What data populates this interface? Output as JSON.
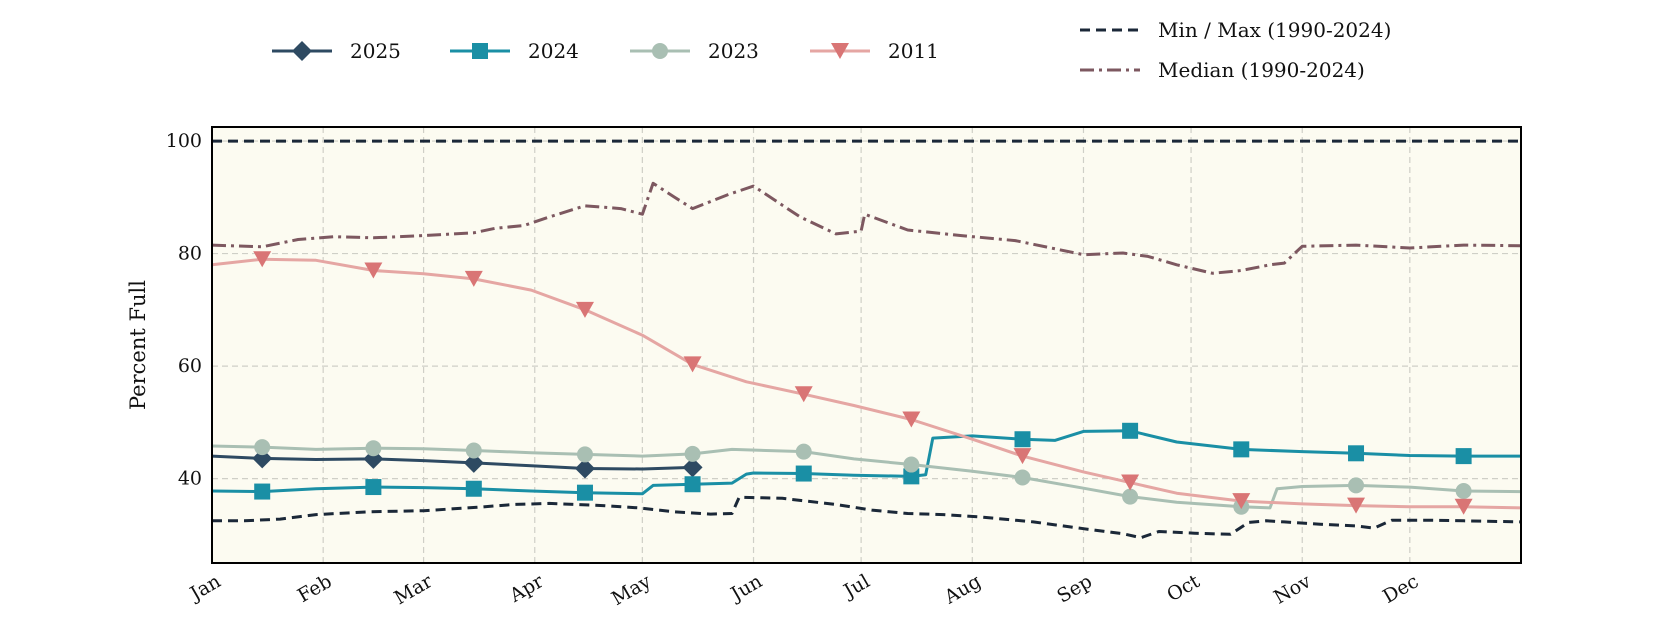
{
  "chart_data": {
    "type": "line",
    "ylabel": "Percent Full",
    "xlabel": "",
    "title": "",
    "x_unit": "day_of_year",
    "xlim": [
      1,
      366
    ],
    "ylim": [
      25,
      102.5
    ],
    "y_ticks": [
      40,
      60,
      80,
      100
    ],
    "x_ticks": [
      {
        "label": "Jan",
        "day": 1
      },
      {
        "label": "Feb",
        "day": 32
      },
      {
        "label": "Mar",
        "day": 60
      },
      {
        "label": "Apr",
        "day": 91
      },
      {
        "label": "May",
        "day": 121
      },
      {
        "label": "Jun",
        "day": 152
      },
      {
        "label": "Jul",
        "day": 182
      },
      {
        "label": "Aug",
        "day": 213
      },
      {
        "label": "Sep",
        "day": 244
      },
      {
        "label": "Oct",
        "day": 274
      },
      {
        "label": "Nov",
        "day": 305
      },
      {
        "label": "Dec",
        "day": 335
      }
    ],
    "grid": true,
    "plot_background": "#fcfbf1",
    "legend_placement": "top",
    "series": [
      {
        "name": "2025",
        "color": "#2e4a62",
        "marker": "diamond",
        "style": "solid",
        "x": [
          1,
          15,
          30,
          46,
          60,
          74,
          90,
          105,
          121,
          135,
          136
        ],
        "y": [
          44.0,
          43.6,
          43.4,
          43.5,
          43.2,
          42.8,
          42.3,
          41.8,
          41.7,
          42.0,
          42.0
        ],
        "marker_x": [
          15,
          46,
          74,
          105,
          135
        ]
      },
      {
        "name": "2024",
        "color": "#1a8fa5",
        "marker": "square",
        "style": "solid",
        "x": [
          1,
          15,
          30,
          46,
          60,
          74,
          90,
          105,
          121,
          124,
          135,
          146,
          150,
          152,
          166,
          180,
          196,
          200,
          202,
          213,
          227,
          236,
          244,
          257,
          270,
          288,
          305,
          320,
          335,
          350,
          366
        ],
        "y": [
          37.8,
          37.7,
          38.2,
          38.5,
          38.4,
          38.2,
          37.8,
          37.5,
          37.3,
          38.8,
          39.0,
          39.2,
          40.8,
          41.0,
          40.9,
          40.6,
          40.4,
          40.7,
          47.2,
          47.6,
          47.0,
          46.8,
          48.4,
          48.5,
          46.5,
          45.2,
          44.8,
          44.5,
          44.1,
          44.0,
          44.0
        ],
        "marker_x": [
          15,
          46,
          74,
          105,
          135,
          166,
          196,
          227,
          257,
          288,
          320,
          350
        ]
      },
      {
        "name": "2023",
        "color": "#a9bfb3",
        "marker": "circle",
        "style": "solid",
        "x": [
          1,
          15,
          30,
          46,
          60,
          74,
          90,
          105,
          121,
          135,
          146,
          166,
          180,
          196,
          213,
          227,
          244,
          257,
          270,
          288,
          296,
          298,
          305,
          320,
          335,
          350,
          366
        ],
        "y": [
          45.8,
          45.6,
          45.2,
          45.4,
          45.3,
          45.0,
          44.6,
          44.3,
          44.0,
          44.4,
          45.2,
          44.8,
          43.5,
          42.5,
          41.3,
          40.2,
          38.3,
          36.8,
          35.8,
          35.0,
          34.8,
          38.2,
          38.6,
          38.8,
          38.5,
          37.8,
          37.7
        ],
        "marker_x": [
          15,
          46,
          74,
          105,
          135,
          166,
          196,
          227,
          257,
          288,
          320,
          350
        ]
      },
      {
        "name": "2011",
        "color": "#d97575",
        "line_color": "#e5a6a3",
        "marker": "triangle-down",
        "style": "solid",
        "x": [
          1,
          15,
          30,
          46,
          60,
          74,
          90,
          105,
          121,
          135,
          150,
          166,
          180,
          196,
          213,
          227,
          244,
          257,
          270,
          288,
          305,
          320,
          335,
          350,
          366
        ],
        "y": [
          78.0,
          79.0,
          78.8,
          77.0,
          76.4,
          75.5,
          73.5,
          70.0,
          65.5,
          60.3,
          57.2,
          55.0,
          53.0,
          50.5,
          47.0,
          44.0,
          41.2,
          39.3,
          37.4,
          36.0,
          35.5,
          35.2,
          35.0,
          35.0,
          34.8
        ],
        "marker_x": [
          15,
          46,
          74,
          105,
          135,
          166,
          196,
          227,
          257,
          288,
          320,
          350
        ]
      },
      {
        "name": "Min / Max (1990-2024)",
        "color": "#1b2838",
        "style": "dashed",
        "x": [
          1,
          366
        ],
        "y": [
          100.0,
          100.0
        ]
      },
      {
        "name": "Min / Max (1990-2024)",
        "color": "#1b2838",
        "style": "dashed",
        "legend": false,
        "x": [
          1,
          10,
          20,
          30,
          45,
          60,
          75,
          85,
          95,
          110,
          120,
          130,
          140,
          146,
          148,
          160,
          175,
          185,
          195,
          205,
          215,
          230,
          244,
          255,
          260,
          265,
          275,
          285,
          290,
          295,
          300,
          310,
          320,
          325,
          330,
          340,
          350,
          366
        ],
        "y": [
          32.5,
          32.5,
          32.8,
          33.6,
          34.1,
          34.3,
          34.9,
          35.4,
          35.6,
          35.2,
          34.8,
          34.1,
          33.7,
          33.8,
          36.7,
          36.5,
          35.4,
          34.4,
          33.8,
          33.6,
          33.2,
          32.3,
          31.1,
          30.2,
          29.5,
          30.6,
          30.3,
          30.1,
          32.2,
          32.5,
          32.3,
          31.9,
          31.6,
          31.2,
          32.6,
          32.6,
          32.5,
          32.3
        ]
      },
      {
        "name": "Median (1990-2024)",
        "color": "#7d5860",
        "style": "dashdot",
        "x": [
          1,
          15,
          25,
          35,
          46,
          60,
          74,
          80,
          88,
          95,
          105,
          115,
          121,
          124,
          130,
          135,
          145,
          152,
          165,
          175,
          182,
          183,
          195,
          210,
          225,
          235,
          244,
          255,
          262,
          270,
          280,
          288,
          296,
          300,
          305,
          320,
          335,
          350,
          366
        ],
        "y": [
          81.5,
          81.2,
          82.5,
          83.0,
          82.8,
          83.2,
          83.7,
          84.5,
          85.0,
          86.5,
          88.5,
          88.0,
          87.0,
          92.5,
          90.0,
          88.0,
          90.5,
          92.0,
          86.5,
          83.5,
          84.0,
          87.0,
          84.2,
          83.2,
          82.3,
          81.0,
          79.8,
          80.1,
          79.5,
          78.0,
          76.5,
          77.0,
          78.0,
          78.3,
          81.3,
          81.5,
          81.0,
          81.5,
          81.4
        ]
      }
    ],
    "legend": [
      {
        "label": "2025",
        "series_index": 0
      },
      {
        "label": "2024",
        "series_index": 1
      },
      {
        "label": "2023",
        "series_index": 2
      },
      {
        "label": "2011",
        "series_index": 3
      },
      {
        "label": "Min / Max (1990-2024)",
        "series_index": 4
      },
      {
        "label": "Median (1990-2024)",
        "series_index": 6
      }
    ]
  }
}
